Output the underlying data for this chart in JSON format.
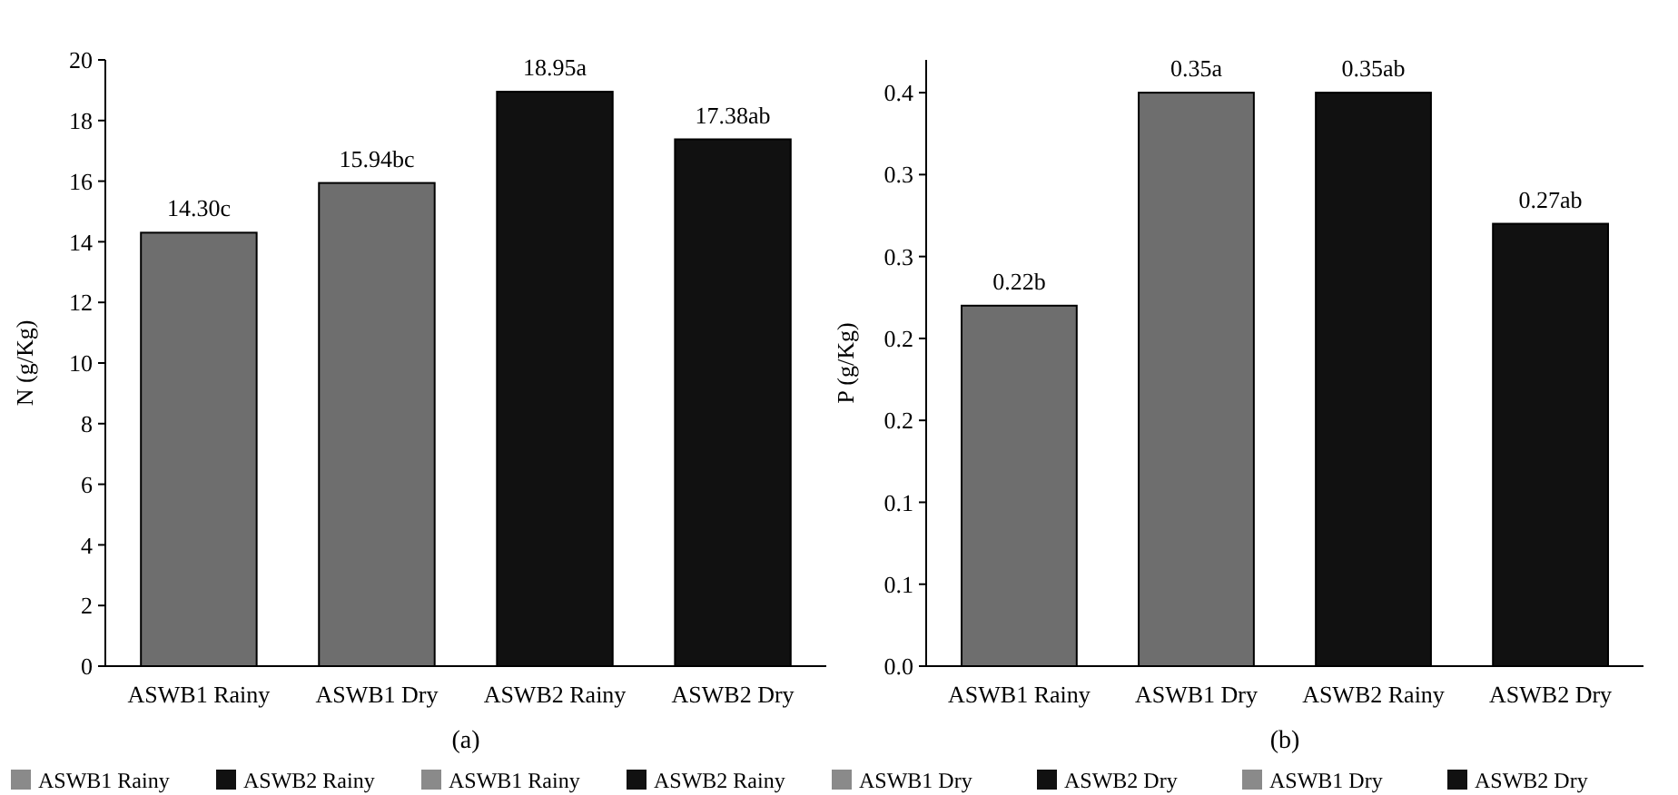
{
  "chart_data": [
    {
      "type": "bar",
      "xlabel": "(a)",
      "ylabel": "N (g/Kg)",
      "categories": [
        "ASWB1 Rainy",
        "ASWB1 Dry",
        "ASWB2 Rainy",
        "ASWB2 Dry"
      ],
      "values": [
        14.3,
        15.94,
        18.95,
        17.38
      ],
      "value_labels": [
        "14.30c",
        "15.94bc",
        "18.95a",
        "17.38ab"
      ],
      "colors": [
        "#6e6e6e",
        "#6e6e6e",
        "#111111",
        "#111111"
      ],
      "ylim": [
        0,
        20
      ],
      "yticks": [
        0,
        2,
        4,
        6,
        8,
        10,
        12,
        14,
        16,
        18,
        20
      ],
      "grid": false
    },
    {
      "type": "bar",
      "xlabel": "(b)",
      "ylabel": "P (g/Kg)",
      "categories": [
        "ASWB1 Rainy",
        "ASWB1 Dry",
        "ASWB2 Rainy",
        "ASWB2 Dry"
      ],
      "values": [
        0.22,
        0.35,
        0.35,
        0.27
      ],
      "value_labels": [
        "0.22b",
        "0.35a",
        "0.35ab",
        "0.27ab"
      ],
      "colors": [
        "#6e6e6e",
        "#6e6e6e",
        "#111111",
        "#111111"
      ],
      "ylim": [
        0,
        0.37
      ],
      "yticks": [
        {
          "value": 0,
          "label": "0.0"
        },
        {
          "value": 0.05,
          "label": "0.1"
        },
        {
          "value": 0.1,
          "label": "0.1"
        },
        {
          "value": 0.15,
          "label": "0.2"
        },
        {
          "value": 0.2,
          "label": "0.2"
        },
        {
          "value": 0.25,
          "label": "0.3"
        },
        {
          "value": 0.3,
          "label": "0.3"
        },
        {
          "value": 0.35,
          "label": "0.4"
        }
      ],
      "grid": false
    },
    {
      "type": "other",
      "categories": [
        "ASWB1 Rainy",
        "ASWB2 Rainy",
        "ASWB1 Rainy",
        "ASWB2 Rainy",
        "ASWB1 Dry",
        "ASWB2 Dry",
        "ASWB1 Dry",
        "ASWB2 Dry"
      ],
      "colors": [
        "#8a8a8a",
        "#111111",
        "#8a8a8a",
        "#111111",
        "#8a8a8a",
        "#111111",
        "#8a8a8a",
        "#111111"
      ]
    }
  ]
}
